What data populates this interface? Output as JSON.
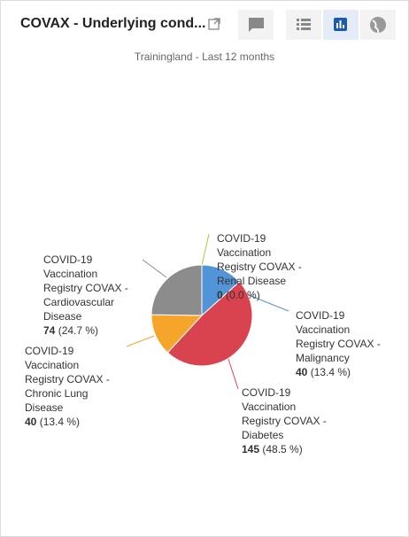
{
  "header": {
    "title": "COVAX - Underlying cond..."
  },
  "chart_data": {
    "type": "pie",
    "subtitle": "Trainingland - Last 12 months",
    "categories": [
      "COVID-19 Vaccination Registry COVAX - Renal Disease",
      "COVID-19 Vaccination Registry COVAX - Malignancy",
      "COVID-19 Vaccination Registry COVAX - Diabetes",
      "COVID-19 Vaccination Registry COVAX - Chronic Lung Disease",
      "COVID-19 Vaccination Registry COVAX - Cardiovascular Disease"
    ],
    "values": [
      0,
      40,
      145,
      40,
      74
    ],
    "percent_labels": [
      "(0.0 %)",
      "(13.4 %)",
      "(48.5 %)",
      "(13.4 %)",
      "(24.7 %)"
    ],
    "colors": [
      "#a8c94a",
      "#5294d8",
      "#d9434f",
      "#f5a52a",
      "#8c8c8c"
    ]
  }
}
